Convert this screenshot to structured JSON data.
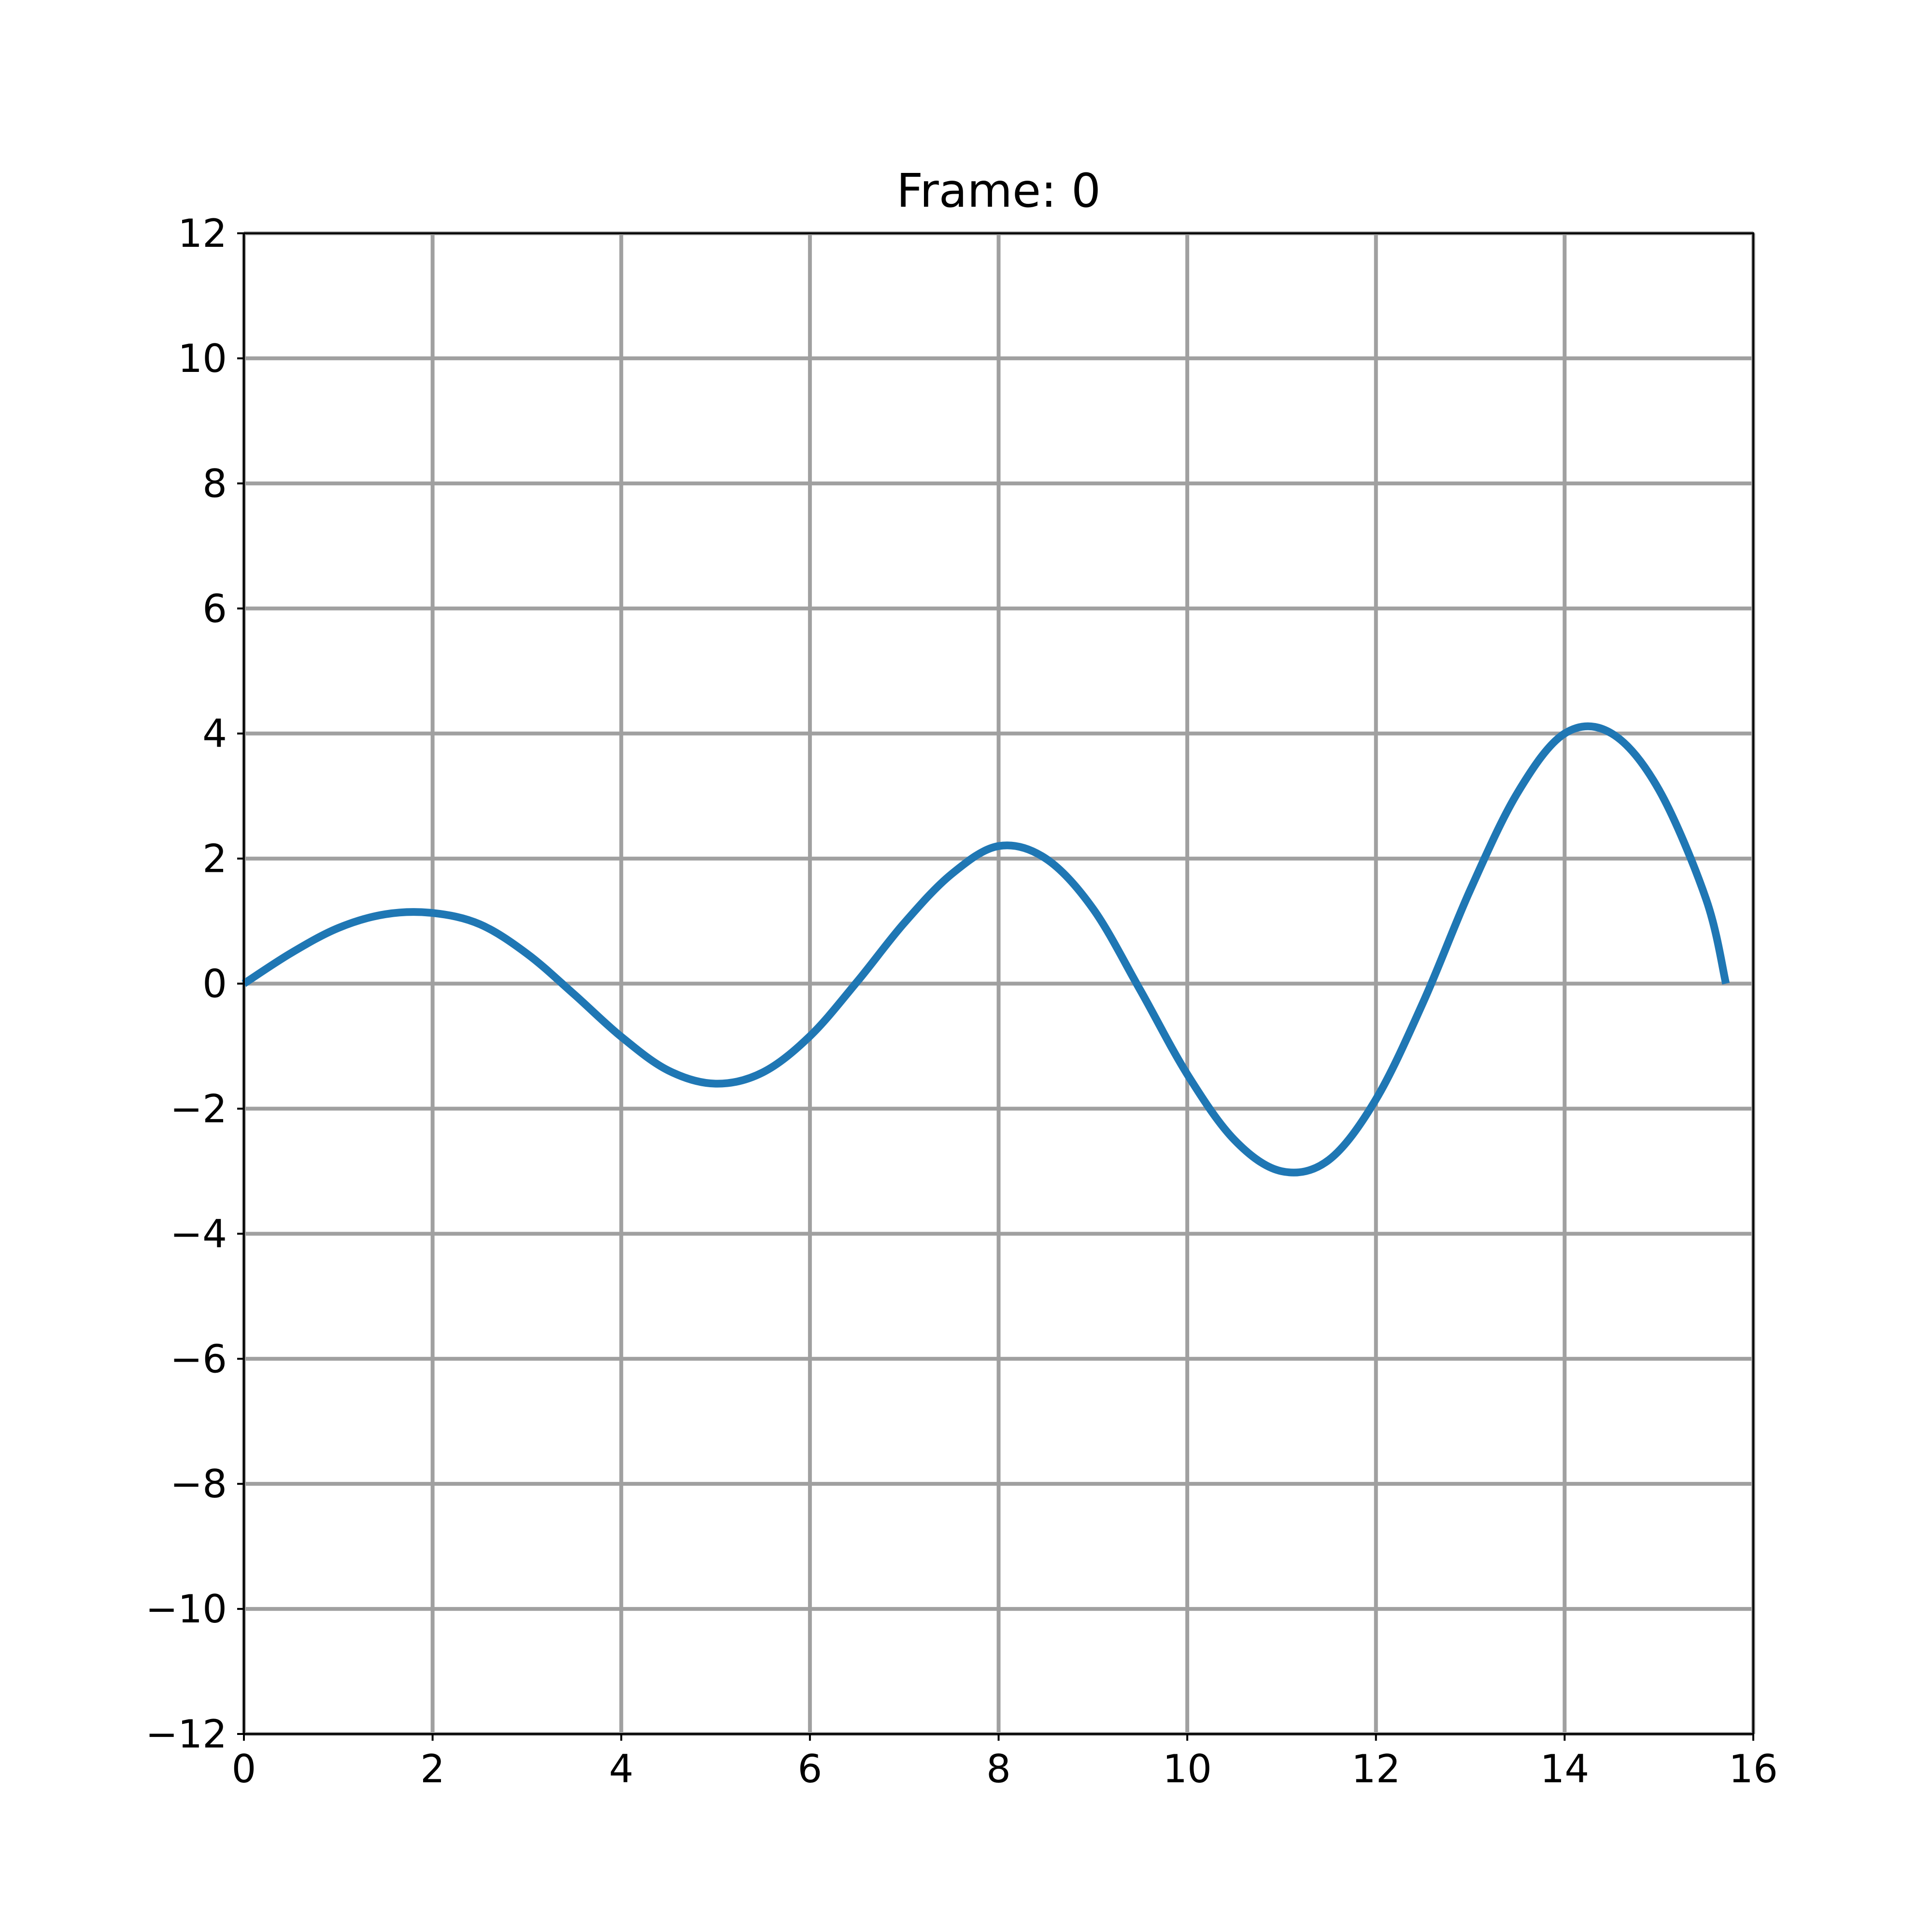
{
  "chart_data": {
    "type": "line",
    "title": "Frame: 0",
    "xlabel": "",
    "ylabel": "",
    "xlim": [
      0,
      16
    ],
    "ylim": [
      -12,
      12
    ],
    "x_ticks": [
      0,
      2,
      4,
      6,
      8,
      10,
      12,
      14,
      16
    ],
    "x_tick_labels": [
      "0",
      "2",
      "4",
      "6",
      "8",
      "10",
      "12",
      "14",
      "16"
    ],
    "y_ticks": [
      12,
      10,
      8,
      6,
      4,
      2,
      0,
      -2,
      -4,
      -6,
      -8,
      -10,
      -12
    ],
    "y_tick_labels": [
      "12",
      "10",
      "8",
      "6",
      "4",
      "2",
      "0",
      "−2",
      "−4",
      "−6",
      "−8",
      "−10",
      "−12"
    ],
    "grid": true,
    "series": [
      {
        "color": "#1f77b4",
        "x": [
          0,
          0.5,
          1,
          1.5,
          2,
          2.5,
          3,
          3.5,
          4,
          4.5,
          5,
          5.5,
          6,
          6.5,
          7,
          7.5,
          8,
          8.5,
          9,
          9.5,
          10,
          10.5,
          11,
          11.5,
          12,
          12.5,
          13,
          13.5,
          14,
          14.5,
          15,
          15.5,
          15.71
        ],
        "y": [
          0,
          0.49,
          0.89,
          1.11,
          1.13,
          0.95,
          0.48,
          -0.17,
          -0.85,
          -1.39,
          -1.6,
          -1.42,
          -0.84,
          0.03,
          0.97,
          1.75,
          2.2,
          2.0,
          1.2,
          -0.1,
          -1.45,
          -2.5,
          -3.0,
          -2.82,
          -1.85,
          -0.3,
          1.5,
          3.05,
          4.0,
          4.0,
          3.1,
          1.35,
          0
        ]
      }
    ]
  }
}
